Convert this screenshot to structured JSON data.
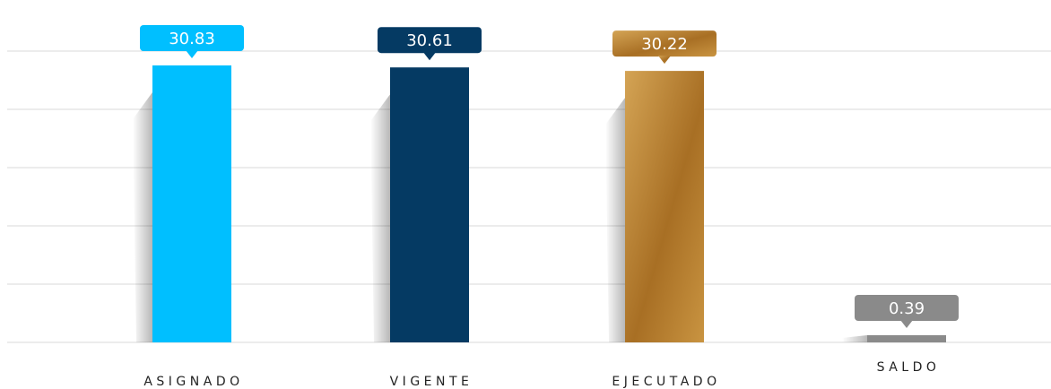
{
  "chart_data": {
    "type": "bar",
    "categories": [
      "ASIGNADO",
      "VIGENTE",
      "EJECUTADO",
      "SALDO"
    ],
    "values": [
      30.83,
      30.61,
      30.22,
      0.39
    ],
    "value_labels": [
      "30.83",
      "30.61",
      "30.22",
      "0.39"
    ],
    "colors": [
      "#00BFFF",
      "#053A63",
      "#B07C2C",
      "#8A8A8A"
    ],
    "title": "",
    "xlabel": "",
    "ylabel": "",
    "grid": true,
    "legend": "none"
  }
}
